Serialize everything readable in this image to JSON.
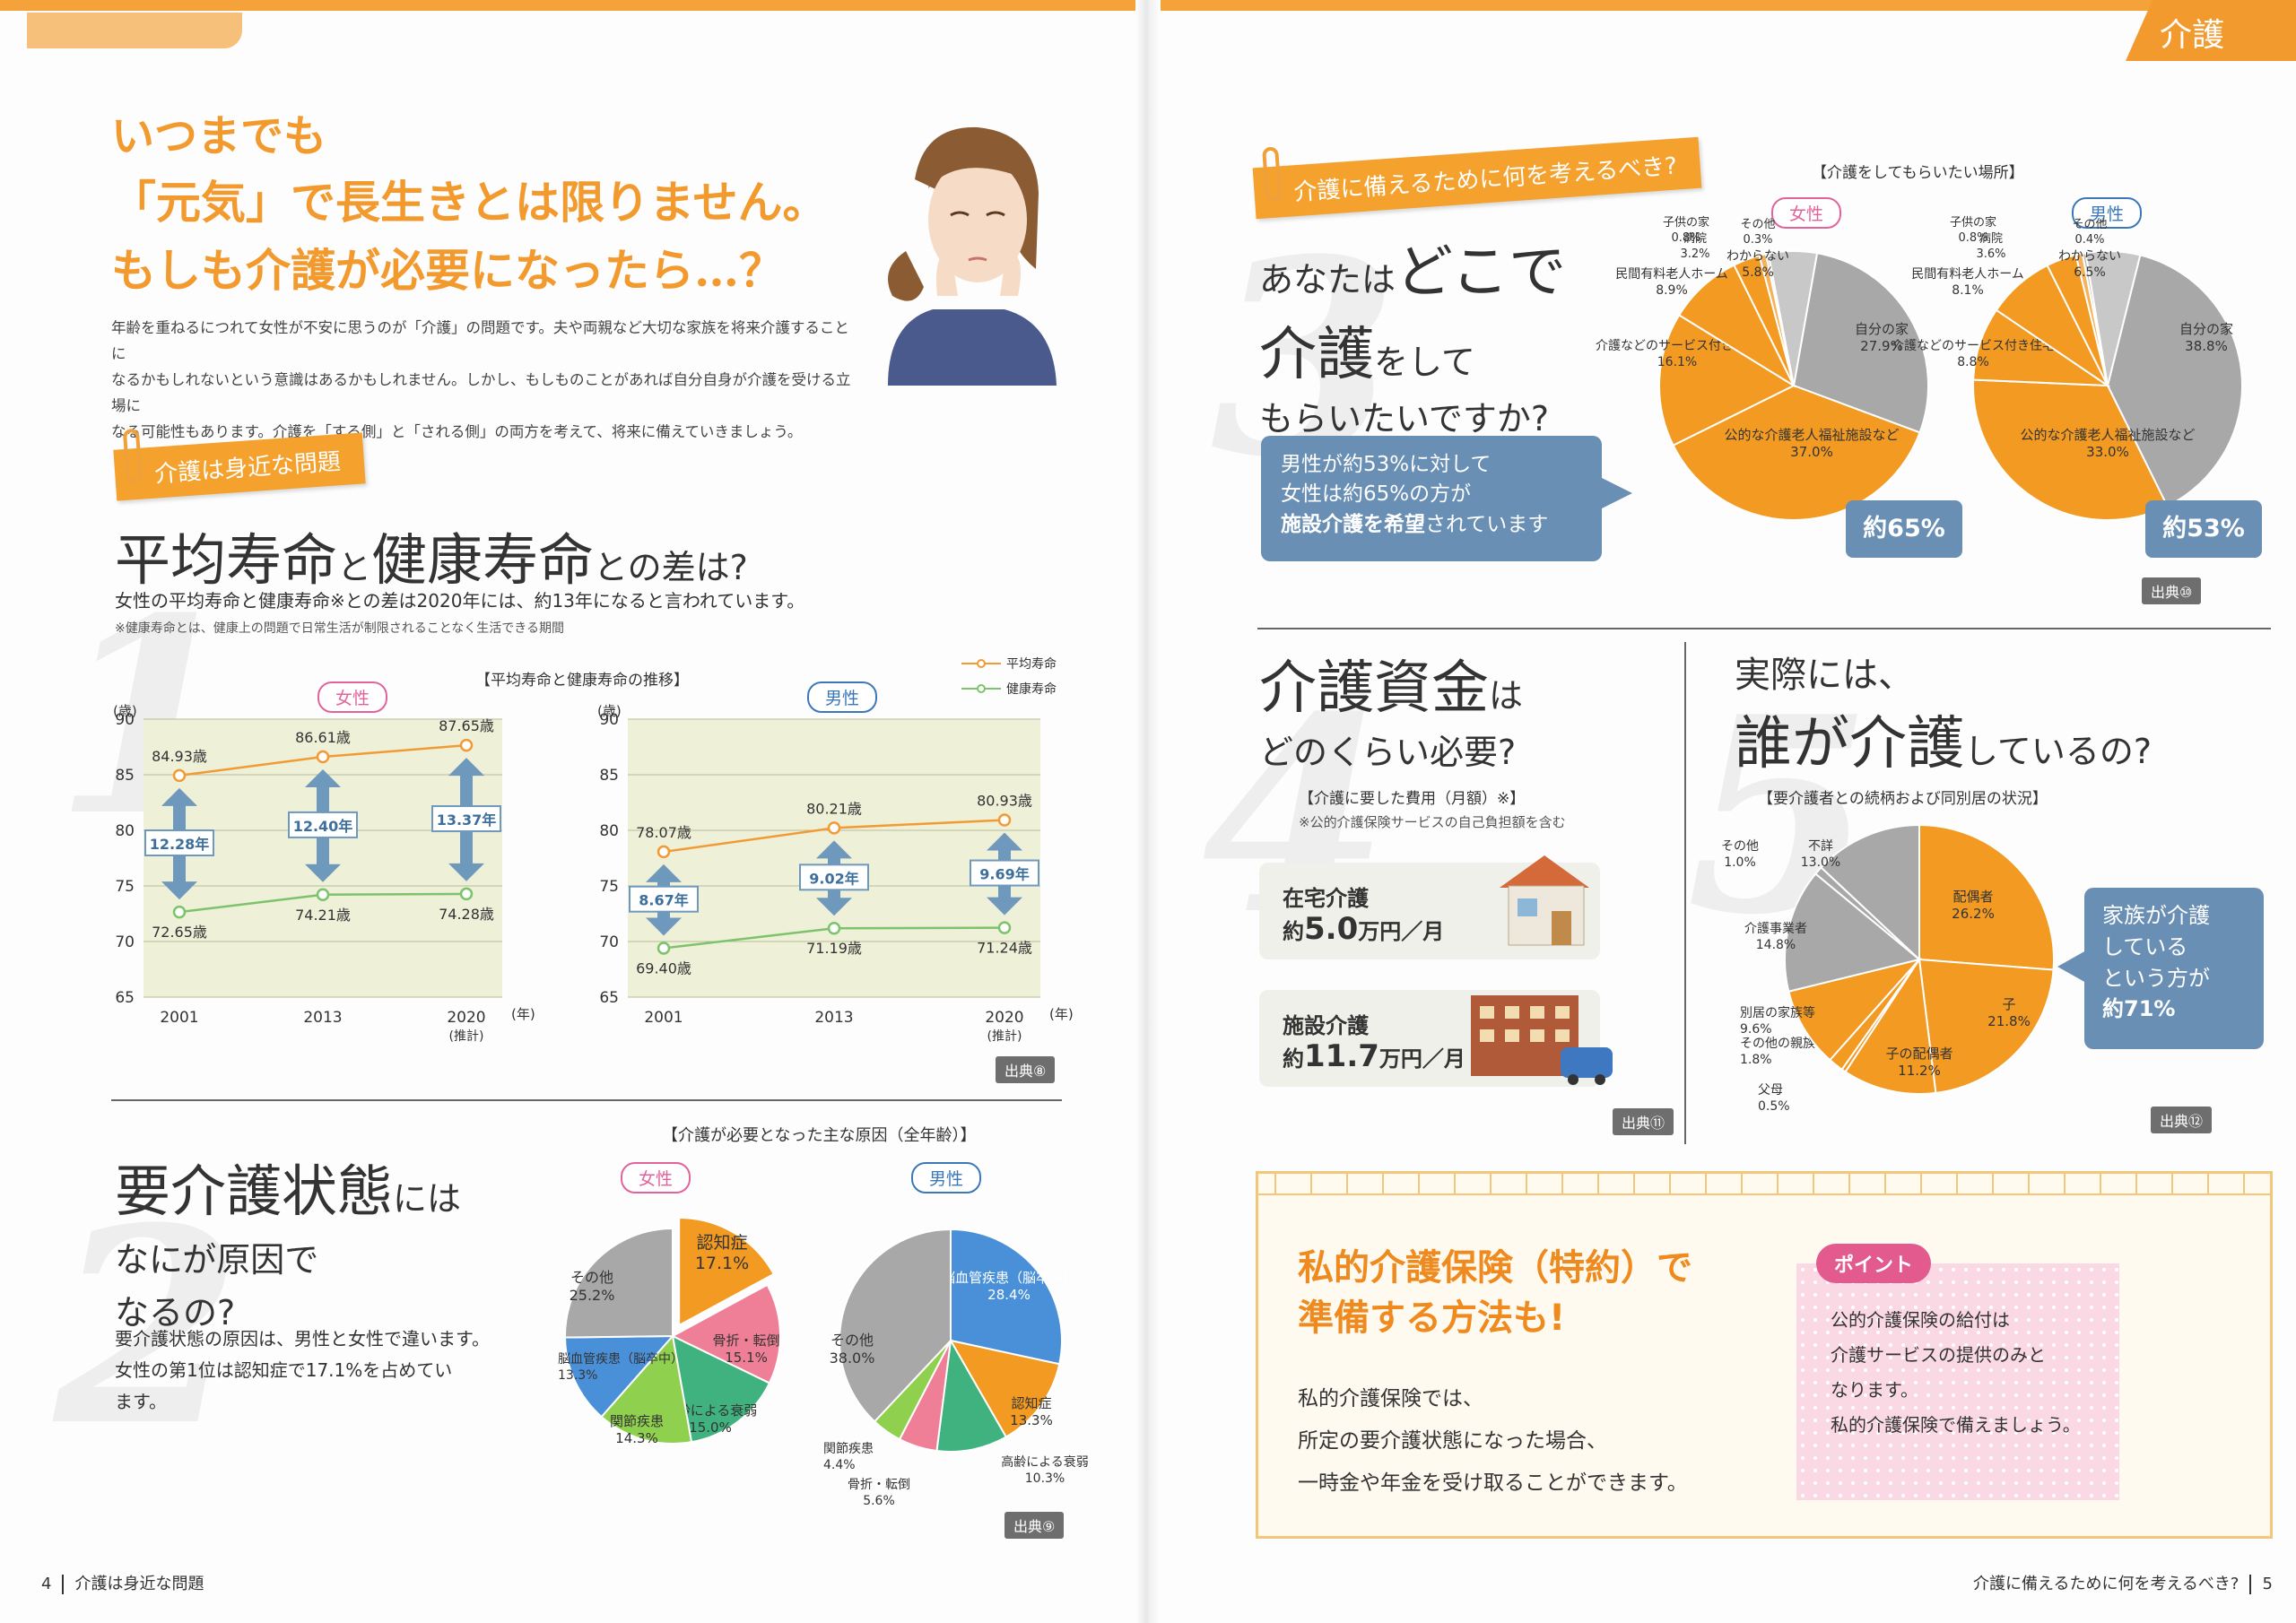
{
  "left": {
    "hero": {
      "line1": "いつまでも",
      "line2": "「元気」で長生きとは限りません。",
      "line3": "もしも介護が必要になったら…？",
      "intro": [
        "年齢を重ねるにつれて女性が不安に思うのが「介護」の問題です。夫や両親など大切な家族を将来介護することに",
        "なるかもしれないという意識はあるかもしれません。しかし、もしものことがあれば自分自身が介護を受ける立場に",
        "なる可能性もあります。介護を「する側」と「される側」の両方を考えて、将来に備えていきましょう。"
      ]
    },
    "tag1": "介護は身近な問題",
    "sec1": {
      "num": "1",
      "title_a": "平均寿命",
      "title_b": "と",
      "title_c": "健康寿命",
      "title_d": "との差は?",
      "lead": "女性の平均寿命と健康寿命※との差は2020年には、約13年になると言われています。",
      "note": "※健康寿命とは、健康上の問題で日常生活が制限されることなく生活できる期間",
      "chart_title": "【平均寿命と健康寿命の推移】",
      "legend_avg": "平均寿命",
      "legend_healthy": "健康寿命",
      "source": "出典⑧"
    },
    "sec2": {
      "num": "2",
      "title_a": "要介護状態",
      "title_b": "には",
      "title_c": "なにが原因で",
      "title_d": "なるの?",
      "body": [
        "要介護状態の原因は、男性と女性で違います。",
        "女性の第1位は認知症で17.1%を占めてい",
        "ます。"
      ],
      "chart_title": "【介護が必要となった主な原因（全年齢）】",
      "source": "出典⑨"
    },
    "footer": {
      "page": "4",
      "text": "介護は身近な問題"
    }
  },
  "right": {
    "corner": "介護",
    "tag": "介護に備えるために何を考えるべき?",
    "sec3": {
      "num": "3",
      "t1": "あなたは",
      "t2": "どこで",
      "t3": "介護",
      "t4": "をして",
      "t5": "もらいたいですか?",
      "chart_title": "【介護をしてもらいたい場所】",
      "bubble": [
        "男性が約53%に対して",
        "女性は約65%の方が"
      ],
      "bubble_b": "施設介護を希望",
      "bubble_c": "されています",
      "badge_f": "約65%",
      "badge_m": "約53%",
      "source": "出典⑩"
    },
    "sec4": {
      "num": "4",
      "t1": "介護資金",
      "t2": "は",
      "t3": "どのくらい必要?",
      "chart_title": "【介護に要した費用（月額）※】",
      "note": "※公的介護保険サービスの自己負担額を含む",
      "home_label": "在宅介護",
      "home_prefix": "約",
      "home_value": "5.0",
      "home_unit": "万円／月",
      "facility_label": "施設介護",
      "facility_prefix": "約",
      "facility_value": "11.7",
      "facility_unit": "万円／月",
      "source": "出典⑪"
    },
    "sec5": {
      "num": "5",
      "t1": "実際には、",
      "t2": "誰が介護",
      "t3": "しているの?",
      "chart_title": "【要介護者との続柄および同別居の状況】",
      "bubble": [
        "家族が介護",
        "している",
        "という方が"
      ],
      "bubble_b": "約71%",
      "source": "出典⑫"
    },
    "insurance": {
      "title1": "私的介護保険（特約）で",
      "title2": "準備する方法も!",
      "body": [
        "私的介護保険では、",
        "所定の要介護状態になった場合、",
        "一時金や年金を受け取ることができます。"
      ],
      "point_label": "ポイント",
      "point_body": [
        "公的介護保険の給付は",
        "介護サービスの提供のみと",
        "なります。",
        "私的介護保険で備えましょう。"
      ]
    },
    "footer": {
      "page": "5",
      "text": "介護に備えるために何を考えるべき?"
    }
  },
  "chart_data": [
    {
      "type": "line",
      "title": "【平均寿命と健康寿命の推移】",
      "panel": "女性",
      "ylabel": "(歳)",
      "xlabel": "(年)",
      "categories": [
        "2001",
        "2013",
        "2020"
      ],
      "x_note": "(推計)",
      "ylim": [
        65,
        90
      ],
      "yticks": [
        65,
        70,
        75,
        80,
        85,
        90
      ],
      "series": [
        {
          "name": "平均寿命",
          "values": [
            84.93,
            86.61,
            87.65
          ],
          "labels": [
            "84.93歳",
            "86.61歳",
            "87.65歳"
          ]
        },
        {
          "name": "健康寿命",
          "values": [
            72.65,
            74.21,
            74.28
          ],
          "labels": [
            "72.65歳",
            "74.21歳",
            "74.28歳"
          ]
        }
      ],
      "gaps": [
        "12.28年",
        "12.40年",
        "13.37年"
      ],
      "colors": {
        "avg": "#f29a34",
        "healthy": "#7cc36b"
      }
    },
    {
      "type": "line",
      "title": "【平均寿命と健康寿命の推移】",
      "panel": "男性",
      "ylabel": "(歳)",
      "xlabel": "(年)",
      "categories": [
        "2001",
        "2013",
        "2020"
      ],
      "x_note": "(推計)",
      "ylim": [
        65,
        90
      ],
      "yticks": [
        65,
        70,
        75,
        80,
        85,
        90
      ],
      "series": [
        {
          "name": "平均寿命",
          "values": [
            78.07,
            80.21,
            80.93
          ],
          "labels": [
            "78.07歳",
            "80.21歳",
            "80.93歳"
          ]
        },
        {
          "name": "健康寿命",
          "values": [
            69.4,
            71.19,
            71.24
          ],
          "labels": [
            "69.40歳",
            "71.19歳",
            "71.24歳"
          ]
        }
      ],
      "gaps": [
        "8.67年",
        "9.02年",
        "9.69年"
      ],
      "colors": {
        "avg": "#f29a34",
        "healthy": "#7cc36b"
      }
    },
    {
      "type": "pie",
      "title": "【介護が必要となった主な原因（全年齢）】",
      "panel": "女性",
      "slices": [
        {
          "label": "認知症",
          "value": 17.1,
          "text": "17.1%",
          "color": "#f29a22"
        },
        {
          "label": "骨折・転倒",
          "value": 15.1,
          "text": "15.1%",
          "color": "#ef7f97"
        },
        {
          "label": "高齢による衰弱",
          "value": 15.0,
          "text": "15.0%",
          "color": "#3fb27f"
        },
        {
          "label": "関節疾患",
          "value": 14.3,
          "text": "14.3%",
          "color": "#8fd14f"
        },
        {
          "label": "脳血管疾患（脳卒中）",
          "value": 13.3,
          "text": "13.3%",
          "color": "#4a90d9"
        },
        {
          "label": "その他",
          "value": 25.2,
          "text": "25.2%",
          "color": "#a8a8a8"
        }
      ]
    },
    {
      "type": "pie",
      "title": "【介護が必要となった主な原因（全年齢）】",
      "panel": "男性",
      "slices": [
        {
          "label": "脳血管疾患（脳卒中）",
          "value": 28.4,
          "text": "28.4%",
          "color": "#4a90d9"
        },
        {
          "label": "認知症",
          "value": 13.3,
          "text": "13.3%",
          "color": "#f29a22"
        },
        {
          "label": "高齢による衰弱",
          "value": 10.3,
          "text": "10.3%",
          "color": "#3fb27f"
        },
        {
          "label": "骨折・転倒",
          "value": 5.6,
          "text": "5.6%",
          "color": "#ef7f97"
        },
        {
          "label": "関節疾患",
          "value": 4.4,
          "text": "4.4%",
          "color": "#8fd14f"
        },
        {
          "label": "その他",
          "value": 38.0,
          "text": "38.0%",
          "color": "#a8a8a8"
        }
      ]
    },
    {
      "type": "pie",
      "title": "【介護をしてもらいたい場所】",
      "panel": "女性",
      "slices": [
        {
          "label": "自分の家",
          "value": 27.9,
          "text": "27.9%",
          "color": "#a8a8a8"
        },
        {
          "label": "公的な介護老人福祉施設など",
          "value": 37.0,
          "text": "37.0%",
          "color": "#f29a22"
        },
        {
          "label": "介護などのサービス付き住宅",
          "value": 16.1,
          "text": "16.1%",
          "color": "#f29a22"
        },
        {
          "label": "民間有料老人ホーム",
          "value": 8.9,
          "text": "8.9%",
          "color": "#f29a22"
        },
        {
          "label": "病院",
          "value": 3.2,
          "text": "3.2%",
          "color": "#f29a22"
        },
        {
          "label": "子供の家",
          "value": 0.8,
          "text": "0.8%",
          "color": "#f4b25a"
        },
        {
          "label": "その他",
          "value": 0.3,
          "text": "0.3%",
          "color": "#bdbdbd"
        },
        {
          "label": "わからない",
          "value": 5.8,
          "text": "5.8%",
          "color": "#c8c8c8"
        }
      ]
    },
    {
      "type": "pie",
      "title": "【介護をしてもらいたい場所】",
      "panel": "男性",
      "slices": [
        {
          "label": "自分の家",
          "value": 38.8,
          "text": "38.8%",
          "color": "#a8a8a8"
        },
        {
          "label": "公的な介護老人福祉施設など",
          "value": 33.0,
          "text": "33.0%",
          "color": "#f29a22"
        },
        {
          "label": "介護などのサービス付き住宅",
          "value": 8.8,
          "text": "8.8%",
          "color": "#f29a22"
        },
        {
          "label": "民間有料老人ホーム",
          "value": 8.1,
          "text": "8.1%",
          "color": "#f29a22"
        },
        {
          "label": "病院",
          "value": 3.6,
          "text": "3.6%",
          "color": "#f29a22"
        },
        {
          "label": "子供の家",
          "value": 0.8,
          "text": "0.8%",
          "color": "#f4b25a"
        },
        {
          "label": "その他",
          "value": 0.4,
          "text": "0.4%",
          "color": "#bdbdbd"
        },
        {
          "label": "わからない",
          "value": 6.5,
          "text": "6.5%",
          "color": "#c8c8c8"
        }
      ]
    },
    {
      "type": "pie",
      "title": "【要介護者との続柄および同別居の状況】",
      "slices": [
        {
          "label": "配偶者",
          "value": 26.2,
          "text": "26.2%",
          "color": "#f29a22"
        },
        {
          "label": "子",
          "value": 21.8,
          "text": "21.8%",
          "color": "#f29a22"
        },
        {
          "label": "子の配偶者",
          "value": 11.2,
          "text": "11.2%",
          "color": "#f29a22"
        },
        {
          "label": "父母",
          "value": 0.5,
          "text": "0.5%",
          "color": "#f29a22"
        },
        {
          "label": "その他の親族",
          "value": 1.8,
          "text": "1.8%",
          "color": "#f29a22"
        },
        {
          "label": "別居の家族等",
          "value": 9.6,
          "text": "9.6%",
          "color": "#f29a22"
        },
        {
          "label": "介護事業者",
          "value": 14.8,
          "text": "14.8%",
          "color": "#a8a8a8"
        },
        {
          "label": "その他",
          "value": 1.0,
          "text": "1.0%",
          "color": "#a8a8a8"
        },
        {
          "label": "不詳",
          "value": 13.0,
          "text": "13.0%",
          "color": "#a8a8a8"
        }
      ]
    }
  ]
}
